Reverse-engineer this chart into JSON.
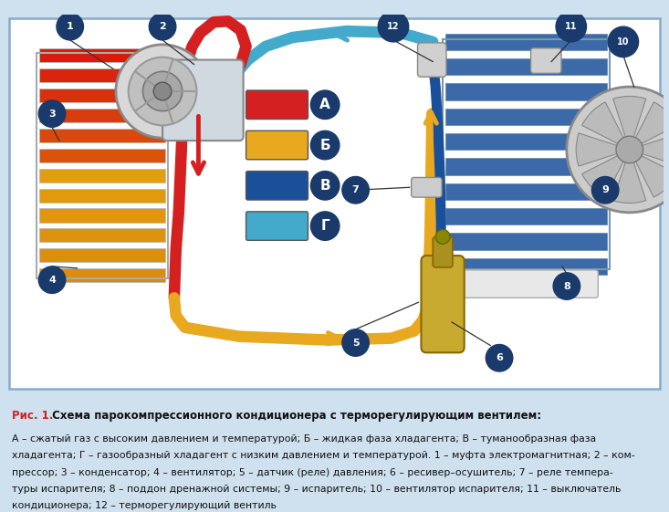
{
  "bg_color": "#cfe0ef",
  "diagram_bg": "#ffffff",
  "caption_bold_text": "Рис. 1.",
  "caption_bold_color": "#cc2222",
  "caption_rest": " Схема парокомпрессионного кондиционера с терморегулирующим вентилем:",
  "body_lines": [
    "А – сжатый газ с высоким давлением и температурой; Б – жидкая фаза хладагента; В – туманообразная фаза",
    "хладагента; Г – газообразный хладагент с низким давлением и температурой. 1 – муфта электромагнитная; 2 – ком-",
    "прессор; 3 – конденсатор; 4 – вентилятор; 5 – датчик (реле) давления; 6 – ресивер–осушитель; 7 – реле темпера-",
    "туры испарителя; 8 – поддон дренажной системы; 9 – испаритель; 10 – вентилятор испарителя; 11 – выключатель",
    "кондиционера; 12 – терморегулирующий вентиль"
  ],
  "legend_items": [
    {
      "label": "А",
      "color": "#d42020"
    },
    {
      "label": "Б",
      "color": "#e8a820"
    },
    {
      "label": "В",
      "color": "#1a509a"
    },
    {
      "label": "Г",
      "color": "#44aacc"
    }
  ],
  "number_bg": "#1a3a6b",
  "red_color": "#d42020",
  "yellow_color": "#e8a820",
  "blue_dark": "#1a509a",
  "blue_light": "#44aacc",
  "pipe_lw": 7,
  "arrow_scale": 20
}
